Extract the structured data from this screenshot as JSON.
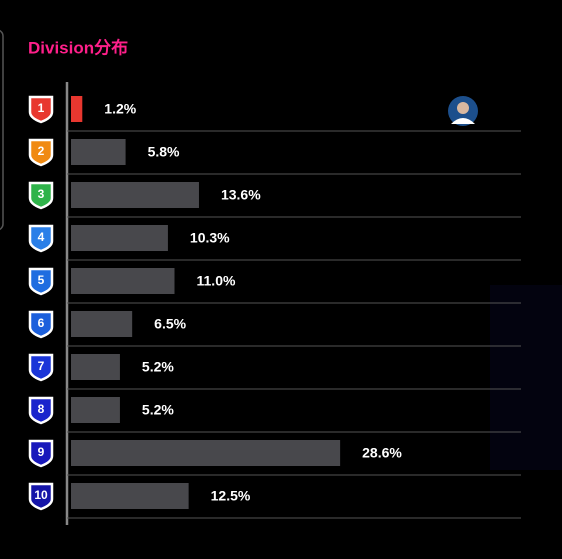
{
  "chart_data": {
    "type": "bar",
    "orientation": "horizontal",
    "title": "Division分布",
    "categories": [
      "1",
      "2",
      "3",
      "4",
      "5",
      "6",
      "7",
      "8",
      "9",
      "10"
    ],
    "values": [
      1.2,
      5.8,
      13.6,
      10.3,
      11.0,
      6.5,
      5.2,
      5.2,
      28.6,
      12.5
    ],
    "value_labels": [
      "1.2%",
      "5.8%",
      "13.6%",
      "10.3%",
      "11.0%",
      "6.5%",
      "5.2%",
      "5.2%",
      "28.6%",
      "12.5%"
    ],
    "bar_colors": [
      "#e8372f",
      "#48484c",
      "#48484c",
      "#48484c",
      "#48484c",
      "#48484c",
      "#48484c",
      "#48484c",
      "#48484c",
      "#48484c"
    ],
    "badge_colors": [
      "#e8372f",
      "#f08a12",
      "#2fb34a",
      "#2a7fe8",
      "#1f6de0",
      "#1b5fdc",
      "#1a35d8",
      "#1a25cc",
      "#1818bb",
      "#1414a8"
    ]
  }
}
